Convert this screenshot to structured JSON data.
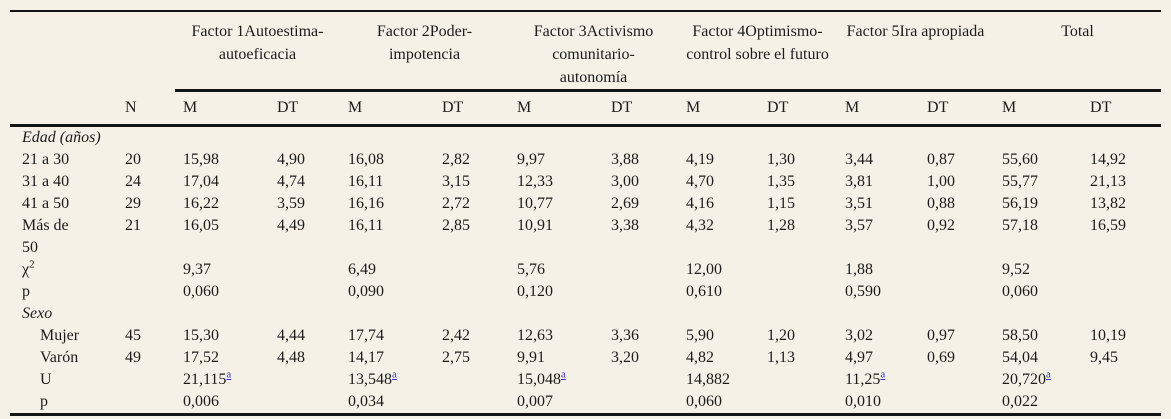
{
  "colors": {
    "background": "#f5f1e6",
    "text": "#1c1c1c",
    "rule_line": "#141414",
    "footnote_link": "#3434cc"
  },
  "table": {
    "groups": [
      {
        "label": "Factor 1Autoestima-\nautoeficacia"
      },
      {
        "label": "Factor 2Poder-\nimpotencia"
      },
      {
        "label": "Factor 3Activismo\ncomunitario-\nautonomía"
      },
      {
        "label": "Factor 4Optimismo-\ncontrol sobre el futuro"
      },
      {
        "label": "Factor 5Ira apropiada"
      },
      {
        "label": "Total"
      }
    ],
    "subheaders": {
      "n": "N",
      "m": "M",
      "dt": "DT"
    },
    "rows": [
      {
        "label": "Edad (años)",
        "italic": true,
        "section": true,
        "cells": []
      },
      {
        "label": "21 a 30",
        "cells": [
          "20",
          "15,98",
          "4,90",
          "16,08",
          "2,82",
          "9,97",
          "3,88",
          "4,19",
          "1,30",
          "3,44",
          "0,87",
          "55,60",
          "14,92"
        ]
      },
      {
        "label": "31 a 40",
        "cells": [
          "24",
          "17,04",
          "4,74",
          "16,11",
          "3,15",
          "12,33",
          "3,00",
          "4,70",
          "1,35",
          "3,81",
          "1,00",
          "55,77",
          "21,13"
        ]
      },
      {
        "label": "41 a 50",
        "cells": [
          "29",
          "16,22",
          "3,59",
          "16,16",
          "2,72",
          "10,77",
          "2,69",
          "4,16",
          "1,15",
          "3,51",
          "0,88",
          "56,19",
          "13,82"
        ]
      },
      {
        "label": "Más de 50",
        "cells": [
          "21",
          "16,05",
          "4,49",
          "16,11",
          "2,85",
          "10,91",
          "3,38",
          "4,32",
          "1,28",
          "3,57",
          "0,92",
          "57,18",
          "16,59"
        ]
      },
      {
        "label": "χ^2",
        "cells": [
          "",
          "9,37",
          "",
          "6,49",
          "",
          "5,76",
          "",
          "12,00",
          "",
          "1,88",
          "",
          "9,52",
          ""
        ]
      },
      {
        "label": "p",
        "cells": [
          "",
          "0,060",
          "",
          "0,090",
          "",
          "0,120",
          "",
          "0,610",
          "",
          "0,590",
          "",
          "0,060",
          ""
        ]
      },
      {
        "label": "Sexo",
        "italic": true,
        "section": true,
        "cells": []
      },
      {
        "label": "Mujer",
        "indent": true,
        "cells": [
          "45",
          "15,30",
          "4,44",
          "17,74",
          "2,42",
          "12,63",
          "3,36",
          "5,90",
          "1,20",
          "3,02",
          "0,97",
          "58,50",
          "10,19"
        ]
      },
      {
        "label": "Varón",
        "indent": true,
        "cells": [
          "49",
          "17,52",
          "4,48",
          "14,17",
          "2,75",
          "9,91",
          "3,20",
          "4,82",
          "1,13",
          "4,97",
          "0,69",
          "54,04",
          "9,45"
        ]
      },
      {
        "label": "U",
        "indent": true,
        "cells": [
          "",
          "21,115^a",
          "",
          "13,548^a",
          "",
          "15,048^a",
          "",
          "14,882",
          "",
          "11,25^a",
          "",
          "20,720^a",
          ""
        ]
      },
      {
        "label": "p",
        "indent": true,
        "cells": [
          "",
          "0,006",
          "",
          "0,034",
          "",
          "0,007",
          "",
          "0,060",
          "",
          "0,010",
          "",
          "0,022",
          ""
        ]
      }
    ]
  }
}
